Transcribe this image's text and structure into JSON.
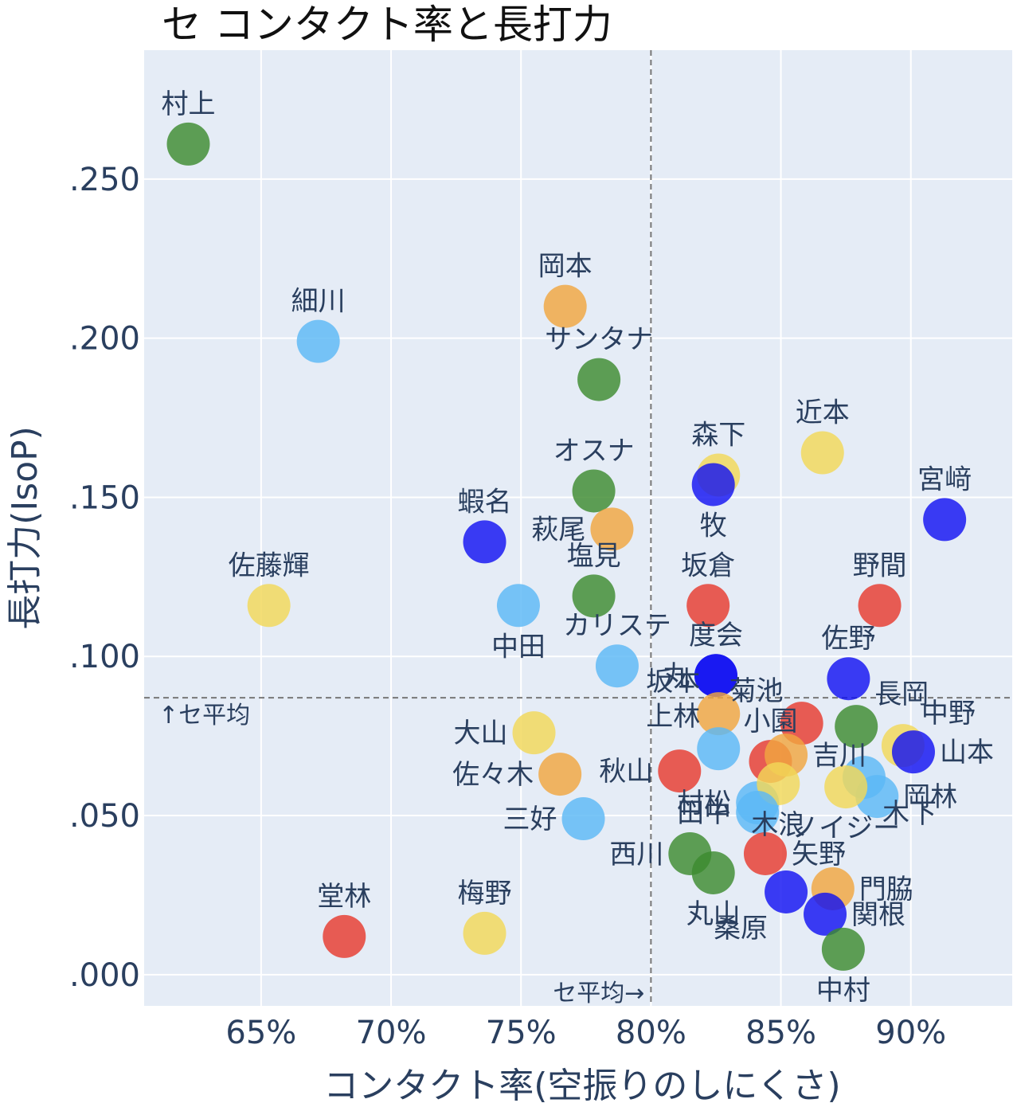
{
  "chart_data": {
    "type": "scatter",
    "title": "セ コンタクト率と長打力",
    "xlabel": "コンタクト率(空振りのしにくさ)",
    "ylabel": "長打力(IsoP)",
    "xlim": [
      0.605,
      0.939
    ],
    "ylim": [
      -0.0098,
      0.2905
    ],
    "xticks": [
      0.65,
      0.7,
      0.75,
      0.8,
      0.85,
      0.9
    ],
    "xtick_labels": [
      "65%",
      "70%",
      "75%",
      "80%",
      "85%",
      "90%"
    ],
    "yticks": [
      0.0,
      0.05,
      0.1,
      0.15,
      0.2,
      0.25
    ],
    "ytick_labels": [
      ".000",
      ".050",
      ".100",
      ".150",
      ".200",
      ".250"
    ],
    "grid": true,
    "reference_lines": {
      "x": 0.8,
      "x_label": "セ平均→",
      "y": 0.087,
      "y_label": "↑セ平均"
    },
    "colors": {
      "green": "#3d8b2f",
      "blue": "#1212f2",
      "lightblue": "#5cb8f5",
      "red": "#e63b2e",
      "orange": "#f0a640",
      "yellow": "#f2d858",
      "plot_bg": "#e5ecf6"
    },
    "points": [
      {
        "name": "村上",
        "x": 0.622,
        "y": 0.261,
        "color": "green",
        "pos": "top"
      },
      {
        "name": "細川",
        "x": 0.672,
        "y": 0.199,
        "color": "lightblue",
        "pos": "top"
      },
      {
        "name": "岡本",
        "x": 0.767,
        "y": 0.21,
        "color": "orange",
        "pos": "top"
      },
      {
        "name": "サンタナ",
        "x": 0.78,
        "y": 0.187,
        "color": "green",
        "pos": "top"
      },
      {
        "name": "オスナ",
        "x": 0.778,
        "y": 0.152,
        "color": "green",
        "pos": "top"
      },
      {
        "name": "萩尾",
        "x": 0.785,
        "y": 0.14,
        "color": "orange",
        "pos": "left"
      },
      {
        "name": "蝦名",
        "x": 0.736,
        "y": 0.136,
        "color": "blue",
        "pos": "top"
      },
      {
        "name": "佐藤輝",
        "x": 0.653,
        "y": 0.116,
        "color": "yellow",
        "pos": "top"
      },
      {
        "name": "塩見",
        "x": 0.778,
        "y": 0.119,
        "color": "green",
        "pos": "top"
      },
      {
        "name": "中田",
        "x": 0.749,
        "y": 0.116,
        "color": "lightblue",
        "pos": "bottom"
      },
      {
        "name": "カリステ",
        "x": 0.787,
        "y": 0.097,
        "color": "lightblue",
        "pos": "top"
      },
      {
        "name": "森下",
        "x": 0.826,
        "y": 0.157,
        "color": "yellow",
        "pos": "top"
      },
      {
        "name": "牧",
        "x": 0.824,
        "y": 0.154,
        "color": "blue",
        "pos": "bottom"
      },
      {
        "name": "近本",
        "x": 0.866,
        "y": 0.164,
        "color": "yellow",
        "pos": "top"
      },
      {
        "name": "宮﨑",
        "x": 0.913,
        "y": 0.143,
        "color": "blue",
        "pos": "top"
      },
      {
        "name": "坂倉",
        "x": 0.822,
        "y": 0.116,
        "color": "red",
        "pos": "top"
      },
      {
        "name": "野間",
        "x": 0.888,
        "y": 0.116,
        "color": "red",
        "pos": "top"
      },
      {
        "name": "度会",
        "x": 0.825,
        "y": 0.094,
        "color": "blue",
        "pos": "top"
      },
      {
        "name": "丸",
        "x": 0.825,
        "y": 0.094,
        "color": "blue",
        "pos": "left"
      },
      {
        "name": "佐野",
        "x": 0.876,
        "y": 0.093,
        "color": "blue",
        "pos": "top"
      },
      {
        "name": "菊池",
        "x": 0.858,
        "y": 0.079,
        "color": "red",
        "pos": "top-left"
      },
      {
        "name": "坂本",
        "x": 0.826,
        "y": 0.082,
        "color": "orange",
        "pos": "top-left"
      },
      {
        "name": "小園",
        "x": 0.846,
        "y": 0.067,
        "color": "red",
        "pos": "top"
      },
      {
        "name": "長岡",
        "x": 0.879,
        "y": 0.078,
        "color": "green",
        "pos": "top-right"
      },
      {
        "name": "中野",
        "x": 0.897,
        "y": 0.072,
        "color": "yellow",
        "pos": "top-right"
      },
      {
        "name": "山本",
        "x": 0.901,
        "y": 0.07,
        "color": "blue",
        "pos": "right"
      },
      {
        "name": "上林",
        "x": 0.826,
        "y": 0.071,
        "color": "lightblue",
        "pos": "top-left"
      },
      {
        "name": "吉川",
        "x": 0.852,
        "y": 0.069,
        "color": "orange",
        "pos": "right"
      },
      {
        "name": "大山",
        "x": 0.755,
        "y": 0.076,
        "color": "yellow",
        "pos": "left"
      },
      {
        "name": "佐々木",
        "x": 0.765,
        "y": 0.063,
        "color": "orange",
        "pos": "left"
      },
      {
        "name": "秋山",
        "x": 0.811,
        "y": 0.064,
        "color": "red",
        "pos": "left"
      },
      {
        "name": "木下",
        "x": 0.882,
        "y": 0.062,
        "color": "lightblue",
        "pos": "bottom-right"
      },
      {
        "name": "岡林",
        "x": 0.887,
        "y": 0.056,
        "color": "lightblue",
        "pos": "right"
      },
      {
        "name": "ノイジー",
        "x": 0.875,
        "y": 0.059,
        "color": "yellow",
        "pos": "bottom"
      },
      {
        "name": "村松",
        "x": 0.841,
        "y": 0.054,
        "color": "lightblue",
        "pos": "left"
      },
      {
        "name": "木浪",
        "x": 0.849,
        "y": 0.06,
        "color": "yellow",
        "pos": "bottom"
      },
      {
        "name": "田中",
        "x": 0.841,
        "y": 0.051,
        "color": "lightblue",
        "pos": "left"
      },
      {
        "name": "三好",
        "x": 0.774,
        "y": 0.049,
        "color": "lightblue",
        "pos": "left"
      },
      {
        "name": "矢野",
        "x": 0.844,
        "y": 0.038,
        "color": "red",
        "pos": "right"
      },
      {
        "name": "西川",
        "x": 0.815,
        "y": 0.038,
        "color": "green",
        "pos": "left"
      },
      {
        "name": "丸山",
        "x": 0.824,
        "y": 0.032,
        "color": "green",
        "pos": "bottom"
      },
      {
        "name": "門脇",
        "x": 0.87,
        "y": 0.027,
        "color": "orange",
        "pos": "right"
      },
      {
        "name": "関根",
        "x": 0.867,
        "y": 0.019,
        "color": "blue",
        "pos": "right"
      },
      {
        "name": "桑原",
        "x": 0.852,
        "y": 0.026,
        "color": "blue",
        "pos": "bottom-left"
      },
      {
        "name": "中村",
        "x": 0.874,
        "y": 0.008,
        "color": "green",
        "pos": "bottom"
      },
      {
        "name": "堂林",
        "x": 0.682,
        "y": 0.012,
        "color": "red",
        "pos": "top"
      },
      {
        "name": "梅野",
        "x": 0.736,
        "y": 0.013,
        "color": "yellow",
        "pos": "top"
      }
    ]
  }
}
